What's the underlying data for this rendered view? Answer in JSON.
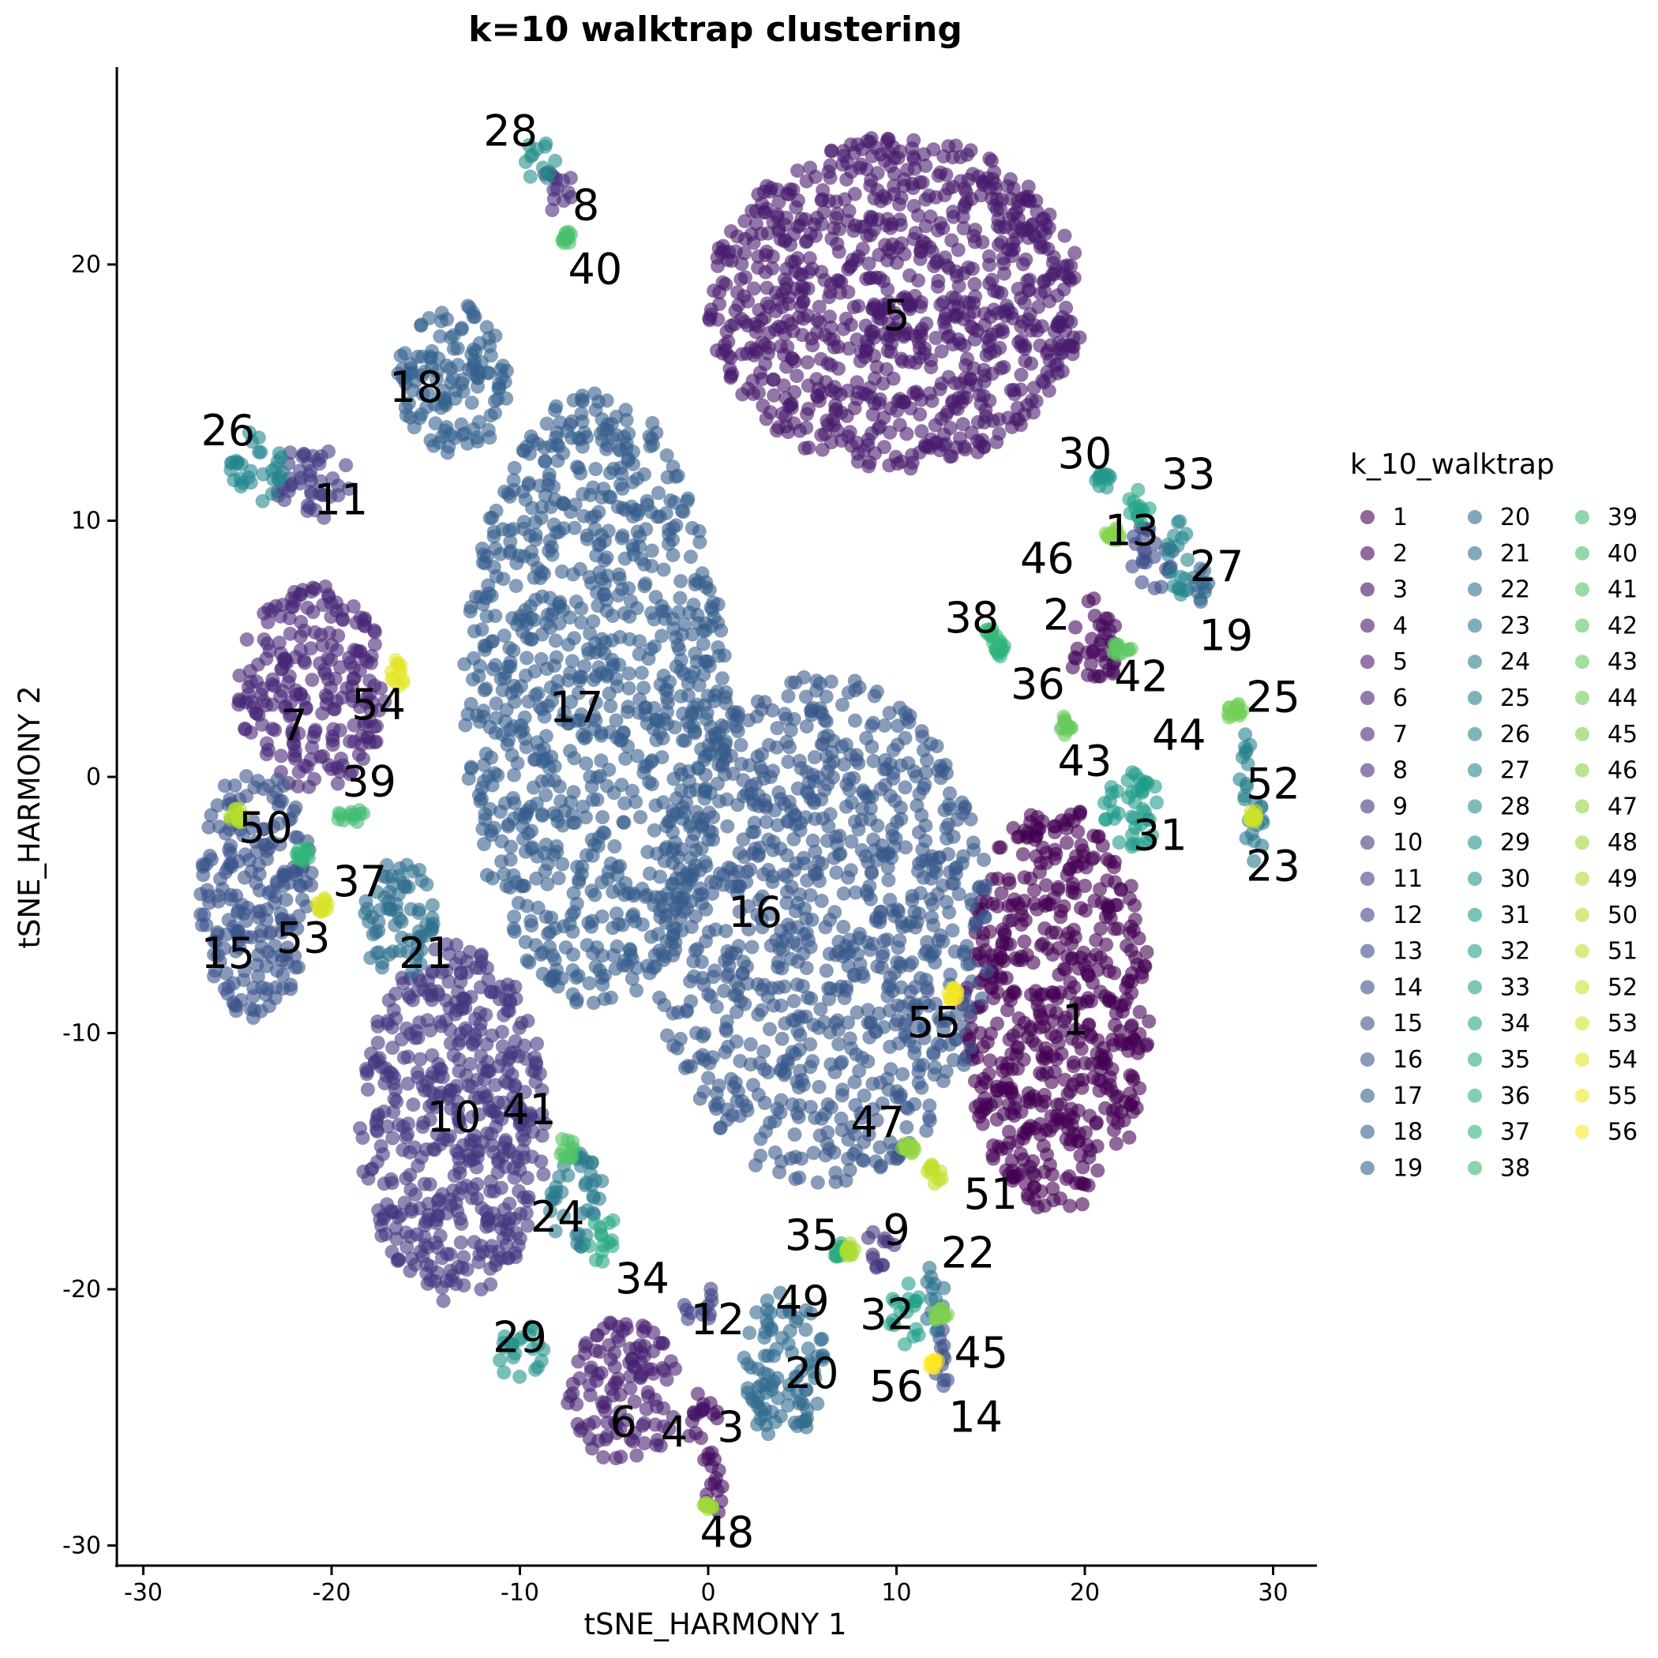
{
  "chart_data": {
    "type": "scatter",
    "title": "k=10 walktrap clustering",
    "xlabel": "tSNE_HARMONY 1",
    "ylabel": "tSNE_HARMONY 2",
    "xlim": [
      -31,
      32
    ],
    "ylim": [
      -30.5,
      28.5
    ],
    "x_ticks": [
      -30,
      -20,
      -10,
      0,
      10,
      20,
      30
    ],
    "y_ticks": [
      -30,
      -20,
      -10,
      0,
      10,
      20
    ],
    "grid": false,
    "legend_position": "right",
    "legend_title": "k_10_walktrap",
    "colormap": "viridis",
    "clusters": [
      {
        "id": 1,
        "label": "1",
        "label_xy": [
          19.5,
          -9.5
        ]
      },
      {
        "id": 2,
        "label": "2",
        "label_xy": [
          18.5,
          6.3
        ]
      },
      {
        "id": 3,
        "label": "3",
        "label_xy": [
          1.2,
          -25.4
        ]
      },
      {
        "id": 4,
        "label": "4",
        "label_xy": [
          -1.8,
          -25.6
        ]
      },
      {
        "id": 5,
        "label": "5",
        "label_xy": [
          10,
          18
        ]
      },
      {
        "id": 6,
        "label": "6",
        "label_xy": [
          -4.5,
          -25.2
        ]
      },
      {
        "id": 7,
        "label": "7",
        "label_xy": [
          -22,
          2
        ]
      },
      {
        "id": 8,
        "label": "8",
        "label_xy": [
          -6.5,
          22.3
        ]
      },
      {
        "id": 9,
        "label": "9",
        "label_xy": [
          10,
          -17.7
        ]
      },
      {
        "id": 10,
        "label": "10",
        "label_xy": [
          -13.5,
          -13.3
        ]
      },
      {
        "id": 11,
        "label": "11",
        "label_xy": [
          -19.5,
          10.8
        ]
      },
      {
        "id": 12,
        "label": "12",
        "label_xy": [
          0.5,
          -21.2
        ]
      },
      {
        "id": 13,
        "label": "13",
        "label_xy": [
          22.5,
          9.6
        ]
      },
      {
        "id": 14,
        "label": "14",
        "label_xy": [
          14.2,
          -25
        ]
      },
      {
        "id": 15,
        "label": "15",
        "label_xy": [
          -25.5,
          -6.9
        ]
      },
      {
        "id": 16,
        "label": "16",
        "label_xy": [
          2.5,
          -5.3
        ]
      },
      {
        "id": 17,
        "label": "17",
        "label_xy": [
          -7,
          2.7
        ]
      },
      {
        "id": 18,
        "label": "18",
        "label_xy": [
          -15.5,
          15.2
        ]
      },
      {
        "id": 19,
        "label": "19",
        "label_xy": [
          27.5,
          5.5
        ]
      },
      {
        "id": 20,
        "label": "20",
        "label_xy": [
          5.5,
          -23.3
        ]
      },
      {
        "id": 21,
        "label": "21",
        "label_xy": [
          -15,
          -6.9
        ]
      },
      {
        "id": 22,
        "label": "22",
        "label_xy": [
          13.8,
          -18.6
        ]
      },
      {
        "id": 23,
        "label": "23",
        "label_xy": [
          30,
          -3.5
        ]
      },
      {
        "id": 24,
        "label": "24",
        "label_xy": [
          -8,
          -17.2
        ]
      },
      {
        "id": 25,
        "label": "25",
        "label_xy": [
          30,
          3.1
        ]
      },
      {
        "id": 26,
        "label": "26",
        "label_xy": [
          -25.5,
          13.5
        ]
      },
      {
        "id": 27,
        "label": "27",
        "label_xy": [
          27,
          8.2
        ]
      },
      {
        "id": 28,
        "label": "28",
        "label_xy": [
          -10.5,
          25.2
        ]
      },
      {
        "id": 29,
        "label": "29",
        "label_xy": [
          -10,
          -21.9
        ]
      },
      {
        "id": 30,
        "label": "30",
        "label_xy": [
          20,
          12.6
        ]
      },
      {
        "id": 31,
        "label": "31",
        "label_xy": [
          24,
          -2.3
        ]
      },
      {
        "id": 32,
        "label": "32",
        "label_xy": [
          9.5,
          -21
        ]
      },
      {
        "id": 33,
        "label": "33",
        "label_xy": [
          25.5,
          11.8
        ]
      },
      {
        "id": 34,
        "label": "34",
        "label_xy": [
          -3.5,
          -19.6
        ]
      },
      {
        "id": 35,
        "label": "35",
        "label_xy": [
          5.5,
          -17.9
        ]
      },
      {
        "id": 36,
        "label": "36",
        "label_xy": [
          17.5,
          3.6
        ]
      },
      {
        "id": 37,
        "label": "37",
        "label_xy": [
          -18.5,
          -4.1
        ]
      },
      {
        "id": 38,
        "label": "38",
        "label_xy": [
          14,
          6.2
        ]
      },
      {
        "id": 39,
        "label": "39",
        "label_xy": [
          -18,
          -0.2
        ]
      },
      {
        "id": 40,
        "label": "40",
        "label_xy": [
          -6,
          19.8
        ]
      },
      {
        "id": 41,
        "label": "41",
        "label_xy": [
          -9.5,
          -13
        ]
      },
      {
        "id": 42,
        "label": "42",
        "label_xy": [
          23,
          3.9
        ]
      },
      {
        "id": 43,
        "label": "43",
        "label_xy": [
          20,
          0.6
        ]
      },
      {
        "id": 44,
        "label": "44",
        "label_xy": [
          25,
          1.6
        ]
      },
      {
        "id": 45,
        "label": "45",
        "label_xy": [
          14.5,
          -22.5
        ]
      },
      {
        "id": 46,
        "label": "46",
        "label_xy": [
          18,
          8.5
        ]
      },
      {
        "id": 47,
        "label": "47",
        "label_xy": [
          9,
          -13.5
        ]
      },
      {
        "id": 48,
        "label": "48",
        "label_xy": [
          1,
          -29.5
        ]
      },
      {
        "id": 49,
        "label": "49",
        "label_xy": [
          5,
          -20.5
        ]
      },
      {
        "id": 50,
        "label": "50",
        "label_xy": [
          -23.5,
          -2
        ]
      },
      {
        "id": 51,
        "label": "51",
        "label_xy": [
          15,
          -16.3
        ]
      },
      {
        "id": 52,
        "label": "52",
        "label_xy": [
          30,
          -0.3
        ]
      },
      {
        "id": 53,
        "label": "53",
        "label_xy": [
          -21.5,
          -6.3
        ]
      },
      {
        "id": 54,
        "label": "54",
        "label_xy": [
          -17.5,
          2.8
        ]
      },
      {
        "id": 55,
        "label": "55",
        "label_xy": [
          12,
          -9.6
        ]
      },
      {
        "id": 56,
        "label": "56",
        "label_xy": [
          10,
          -23.8
        ]
      }
    ]
  }
}
